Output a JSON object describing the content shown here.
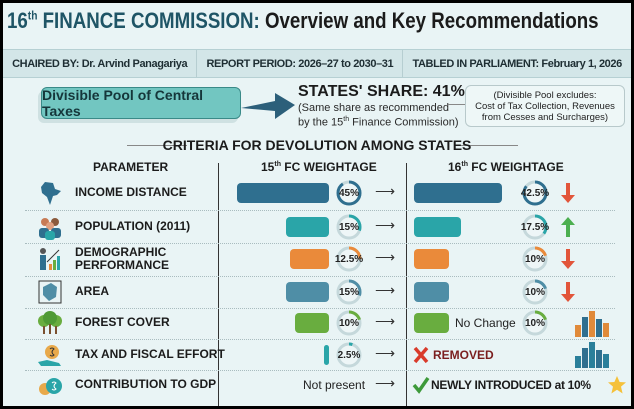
{
  "title": {
    "sup_prefix": "16",
    "sup": "th",
    "accent": " FINANCE COMMISSION:",
    "rest": " Overview and Key Recommendations"
  },
  "info": [
    "CHAIRED BY: Dr. Arvind Panagariya",
    "REPORT PERIOD: 2026–27 to 2030–31",
    "TABLED IN PARLIAMENT: February 1, 2026"
  ],
  "pool": {
    "label": "Divisible Pool of Central Taxes"
  },
  "share": {
    "title": "STATES' SHARE: 41%",
    "sub1": "(Same share as recommended",
    "sub2": "by the 15",
    "sub2_sup": "th",
    "sub2_end": " Finance Commission)"
  },
  "note": {
    "l1": "(Divisible Pool excludes:",
    "l2": "Cost of Tax Collection, Revenues",
    "l3": "from Cesses and Surcharges)"
  },
  "criteria_heading": "CRITERIA FOR DEVOLUTION AMONG STATES",
  "headers": {
    "parameter": "PARAMETER",
    "fc15_pre": "15",
    "fc15_sup": "th",
    "fc15": " FC WEIGHTAGE",
    "fc16_pre": "16",
    "fc16_sup": "th",
    "fc16": " FC WEIGHTAGE"
  },
  "colors": {
    "blue": "#2f6f8f",
    "teal": "#2aa5a8",
    "orange": "#ea8a3a",
    "steel": "#4f8ea6",
    "green": "#69ad3f",
    "up": "#4caf50",
    "down": "#e2553a"
  },
  "rows": [
    {
      "name": "INCOME DISTANCE",
      "icon": "india-map-icon",
      "fc15": 45,
      "fc15_label": "45%",
      "fc16": 42.5,
      "fc16_label": "42.5%",
      "change": "down",
      "color": "#2f6f8f"
    },
    {
      "name": "POPULATION (2011)",
      "icon": "people-icon",
      "fc15": 15,
      "fc15_label": "15%",
      "fc16": 17.5,
      "fc16_label": "17.5%",
      "change": "up",
      "color": "#2aa5a8"
    },
    {
      "name": "DEMOGRAPHIC PERFORMANCE",
      "icon": "growth-chart-icon",
      "fc15": 12.5,
      "fc15_label": "12.5%",
      "fc16": 10,
      "fc16_label": "10%",
      "change": "down",
      "color": "#ea8a3a"
    },
    {
      "name": "AREA",
      "icon": "area-map-icon",
      "fc15": 15,
      "fc15_label": "15%",
      "fc16": 10,
      "fc16_label": "10%",
      "change": "down",
      "color": "#4f8ea6"
    },
    {
      "name": "FOREST COVER",
      "icon": "trees-icon",
      "fc15": 10,
      "fc15_label": "10%",
      "fc16": 10,
      "fc16_label": "10%",
      "change": "none",
      "note": "No Change",
      "color": "#69ad3f"
    },
    {
      "name": "TAX AND FISCAL EFFORT",
      "icon": "money-bag-hand-icon",
      "fc15": 2.5,
      "fc15_label": "2.5%",
      "status16": "REMOVED",
      "color": "#2aa5a8"
    },
    {
      "name": "CONTRIBUTION TO GDP",
      "icon": "money-bags-icon",
      "fc15_text": "Not present",
      "status16": "NEWLY INTRODUCED at 10%"
    }
  ]
}
